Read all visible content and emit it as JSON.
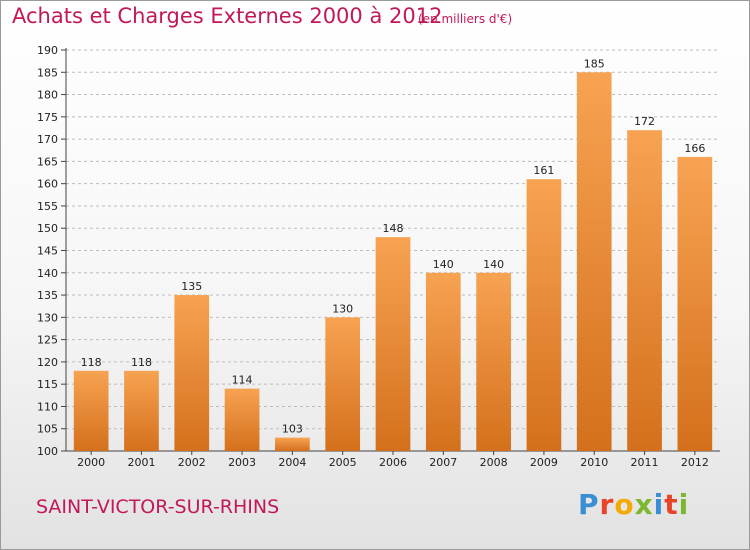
{
  "header": {
    "title": "Achats et Charges Externes 2000 à 2012",
    "subtitle": "(en milliers d'€)"
  },
  "footer": {
    "commune": "SAINT-VICTOR-SUR-RHINS",
    "logo_text": "Proxiti",
    "logo_letters": [
      {
        "char": "P",
        "color": "#3a8fd4"
      },
      {
        "char": "r",
        "color": "#e8442a"
      },
      {
        "char": "o",
        "color": "#f2a900"
      },
      {
        "char": "x",
        "color": "#7cb82f"
      },
      {
        "char": "i",
        "color": "#3a8fd4"
      },
      {
        "char": "t",
        "color": "#e8442a"
      },
      {
        "char": "i",
        "color": "#7cb82f"
      }
    ]
  },
  "chart_data": {
    "type": "bar",
    "title": "Achats et Charges Externes 2000 à 2012",
    "subtitle": "(en milliers d'€)",
    "xlabel": "",
    "ylabel": "",
    "categories": [
      "2000",
      "2001",
      "2002",
      "2003",
      "2004",
      "2005",
      "2006",
      "2007",
      "2008",
      "2009",
      "2010",
      "2011",
      "2012"
    ],
    "values": [
      118,
      118,
      135,
      114,
      103,
      130,
      148,
      140,
      140,
      161,
      185,
      172,
      166
    ],
    "ylim": [
      100,
      190
    ],
    "yticks": [
      100,
      105,
      110,
      115,
      120,
      125,
      130,
      135,
      140,
      145,
      150,
      155,
      160,
      165,
      170,
      175,
      180,
      185,
      190
    ],
    "grid": true,
    "bar_color_top": "#f7a352",
    "bar_color_bottom": "#d4701c",
    "grid_color": "#bdbdbd"
  }
}
